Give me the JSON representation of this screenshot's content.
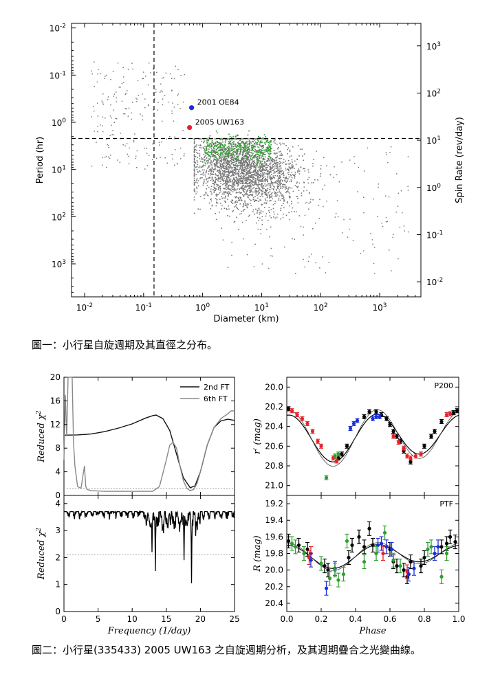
{
  "captions": {
    "fig1": "圖一：小行星自旋週期及其直徑之分布。",
    "fig2": "圖二：小行星(335433) 2005 UW163 之自旋週期分析，及其週期疊合之光變曲線。"
  },
  "chart_data": [
    {
      "type": "scatter",
      "title": "",
      "xlabel": "Diameter (km)",
      "ylabel": "Period (hr)",
      "y2label": "Spin Rate (rev/day)",
      "xscale": "log",
      "yscale": "log",
      "xlim": [
        0.006,
        5000
      ],
      "ylim": [
        0.008,
        5000
      ],
      "x_ticks": [
        {
          "v": 0.01,
          "b": "10",
          "e": "-2"
        },
        {
          "v": 0.1,
          "b": "10",
          "e": "-1"
        },
        {
          "v": 1,
          "b": "10",
          "e": "0"
        },
        {
          "v": 10,
          "b": "10",
          "e": "1"
        },
        {
          "v": 100,
          "b": "10",
          "e": "2"
        },
        {
          "v": 1000,
          "b": "10",
          "e": "3"
        }
      ],
      "y_ticks": [
        {
          "v": 0.01,
          "b": "10",
          "e": "-2"
        },
        {
          "v": 0.1,
          "b": "10",
          "e": "-1"
        },
        {
          "v": 1,
          "b": "10",
          "e": "0"
        },
        {
          "v": 10,
          "b": "10",
          "e": "1"
        },
        {
          "v": 100,
          "b": "10",
          "e": "2"
        },
        {
          "v": 1000,
          "b": "10",
          "e": "3"
        }
      ],
      "y2_ticks": [
        {
          "v": 1000,
          "b": "10",
          "e": "3"
        },
        {
          "v": 100,
          "b": "10",
          "e": "2"
        },
        {
          "v": 10,
          "b": "10",
          "e": "1"
        },
        {
          "v": 1,
          "b": "10",
          "e": "0"
        },
        {
          "v": 0.1,
          "b": "10",
          "e": "-1"
        },
        {
          "v": 0.01,
          "b": "10",
          "e": "-2"
        }
      ],
      "spin_barrier_period_hr": 2.2,
      "size_limit_km": 0.15,
      "highlighted": [
        {
          "name": "2001 OE84",
          "diameter_km": 0.65,
          "period_hr": 0.49,
          "color": "#1a2fd6"
        },
        {
          "name": "2005 UW163",
          "diameter_km": 0.6,
          "period_hr": 1.29,
          "color": "#e8212a"
        }
      ],
      "populations": [
        {
          "name": "known asteroids",
          "color": "#777777",
          "note": "thousands of points; main cloud D≈1–300 km, P≈2–100 hr"
        },
        {
          "name": "survey sample",
          "color": "#2e9e2e",
          "note": "green points D≈1–15 km, P≈3–10 hr"
        }
      ]
    },
    {
      "type": "line",
      "panel": "top-left",
      "xlabel": "",
      "ylabel": "Reduced χ²",
      "xlim": [
        0,
        25
      ],
      "ylim": [
        0,
        20
      ],
      "y_ticks": [
        0,
        4,
        8,
        12,
        16,
        20
      ],
      "legend_position": "top-right",
      "series": [
        {
          "name": "2nd FT",
          "color": "#111111",
          "x": [
            0,
            2,
            4,
            6,
            8,
            10,
            12,
            13,
            13.5,
            14.5,
            15.5,
            16.5,
            17.5,
            18.5,
            19.2,
            20,
            21,
            22,
            23,
            24,
            25
          ],
          "y": [
            10.2,
            10.25,
            10.4,
            10.8,
            11.4,
            12.1,
            13.1,
            13.5,
            13.6,
            13.0,
            11.0,
            7.0,
            3.0,
            1.3,
            1.6,
            4.0,
            8.5,
            11.5,
            12.6,
            12.9,
            12.7
          ]
        },
        {
          "name": "6th FT",
          "color": "#888888",
          "x": [
            0,
            0.2,
            0.4,
            0.6,
            0.8,
            1.0,
            1.2,
            1.4,
            1.6,
            2.0,
            2.5,
            3.0,
            3.2,
            3.4,
            4,
            6,
            8,
            10,
            12,
            13,
            14,
            15,
            15.5,
            16,
            16.5,
            17,
            17.5,
            18,
            18.5,
            19,
            19.5,
            20,
            21,
            22,
            23,
            24,
            24.5,
            25
          ],
          "y": [
            6,
            17,
            10,
            20,
            20,
            20,
            20,
            9,
            5,
            1.5,
            1.2,
            5,
            1.5,
            1.0,
            0.8,
            0.7,
            0.7,
            0.7,
            0.7,
            0.7,
            1.5,
            6.0,
            8.5,
            9.0,
            8.0,
            5.0,
            2.5,
            1.2,
            0.8,
            1.0,
            2.0,
            4.0,
            8.5,
            11.5,
            13.0,
            13.8,
            14.3,
            14.3
          ]
        }
      ],
      "reference_level": 1.2
    },
    {
      "type": "line",
      "panel": "bottom-left",
      "xlabel": "Frequency (1/day)",
      "ylabel": "Reduced χ²",
      "xlim": [
        0,
        25
      ],
      "ylim": [
        0,
        4.3
      ],
      "x_ticks": [
        0,
        5,
        10,
        15,
        20,
        25
      ],
      "y_ticks": [
        0,
        1,
        2,
        3,
        4
      ],
      "reference_level": 2.1,
      "series": [
        {
          "name": "periodogram",
          "color": "#000000",
          "note": "noisy ~3.7 baseline with deep minima near 13.5, 17.8, 18.7 1/day",
          "minima": [
            {
              "x": 12.9,
              "y": 2.2
            },
            {
              "x": 13.4,
              "y": 1.5
            },
            {
              "x": 14.6,
              "y": 2.9
            },
            {
              "x": 17.6,
              "y": 1.9
            },
            {
              "x": 18.7,
              "y": 1.05
            },
            {
              "x": 19.3,
              "y": 2.8
            }
          ]
        }
      ]
    },
    {
      "type": "scatter",
      "panel": "top-right",
      "label": "P200",
      "xlabel": "",
      "ylabel": "r′ (mag)",
      "xlim": [
        0,
        1
      ],
      "ylim": [
        21.1,
        19.9
      ],
      "y_ticks": [
        20.0,
        20.2,
        20.4,
        20.6,
        20.8,
        21.0
      ],
      "series": [
        {
          "name": "black",
          "color": "#000000",
          "x": [
            0.01,
            0.3,
            0.32,
            0.35,
            0.45,
            0.48,
            0.52,
            0.55,
            0.58,
            0.6,
            0.62,
            0.64,
            0.66,
            0.68,
            0.72,
            0.8,
            0.84,
            0.86,
            0.9,
            0.97,
            0.99
          ],
          "y": [
            20.22,
            20.72,
            20.68,
            20.6,
            20.3,
            20.25,
            20.25,
            20.28,
            20.32,
            20.38,
            20.45,
            20.5,
            20.55,
            20.65,
            20.76,
            20.6,
            20.5,
            20.45,
            20.35,
            20.26,
            20.24
          ]
        },
        {
          "name": "red",
          "color": "#e8212a",
          "x": [
            0.03,
            0.06,
            0.09,
            0.12,
            0.15,
            0.18,
            0.2,
            0.27,
            0.29,
            0.62,
            0.65,
            0.68,
            0.7,
            0.72,
            0.75,
            0.78,
            0.93,
            0.95
          ],
          "y": [
            20.24,
            20.28,
            20.32,
            20.37,
            20.45,
            20.55,
            20.6,
            20.72,
            20.75,
            20.5,
            20.56,
            20.62,
            20.7,
            20.72,
            20.7,
            20.68,
            20.28,
            20.27
          ]
        },
        {
          "name": "blue",
          "color": "#1a2fd6",
          "x": [
            0.37,
            0.39,
            0.41,
            0.5,
            0.52,
            0.54
          ],
          "y": [
            20.42,
            20.37,
            20.34,
            20.32,
            20.3,
            20.3
          ]
        },
        {
          "name": "green",
          "color": "#2e9e2e",
          "x": [
            0.23,
            0.28,
            0.3
          ],
          "y": [
            20.92,
            20.7,
            20.68
          ]
        }
      ]
    },
    {
      "type": "scatter",
      "panel": "bottom-right",
      "label": "PTF",
      "xlabel": "Phase",
      "ylabel": "R (mag)",
      "xlim": [
        0,
        1
      ],
      "ylim": [
        20.5,
        19.1
      ],
      "x_ticks": [
        0.0,
        0.2,
        0.4,
        0.6,
        0.8,
        1.0
      ],
      "y_ticks": [
        19.2,
        19.4,
        19.6,
        19.8,
        20.0,
        20.2,
        20.4
      ],
      "series": [
        {
          "name": "black",
          "color": "#000000",
          "x": [
            0.01,
            0.07,
            0.12,
            0.22,
            0.24,
            0.36,
            0.38,
            0.42,
            0.45,
            0.48,
            0.5,
            0.6,
            0.62,
            0.64,
            0.68,
            0.7,
            0.72,
            0.78,
            0.8,
            0.9,
            0.93,
            0.95,
            0.98
          ],
          "y": [
            19.65,
            19.7,
            19.75,
            19.95,
            20.0,
            19.85,
            19.7,
            19.6,
            19.72,
            19.5,
            19.7,
            19.75,
            19.9,
            19.95,
            20.0,
            20.08,
            19.9,
            19.95,
            19.85,
            19.72,
            19.68,
            19.6,
            19.66
          ]
        },
        {
          "name": "red",
          "color": "#e8212a",
          "x": [
            0.13,
            0.14,
            0.56,
            0.7
          ],
          "y": [
            19.85,
            19.8,
            19.8,
            20.02
          ]
        },
        {
          "name": "blue",
          "color": "#1a2fd6",
          "x": [
            0.14,
            0.23,
            0.28,
            0.53,
            0.55,
            0.58,
            0.61,
            0.71,
            0.74,
            0.86,
            0.88
          ],
          "y": [
            19.88,
            20.22,
            19.98,
            19.7,
            19.68,
            19.72,
            19.75,
            20.05,
            19.98,
            19.8,
            19.72
          ]
        },
        {
          "name": "green",
          "color": "#2e9e2e",
          "x": [
            0.03,
            0.05,
            0.1,
            0.2,
            0.25,
            0.28,
            0.3,
            0.33,
            0.35,
            0.45,
            0.52,
            0.57,
            0.62,
            0.66,
            0.82,
            0.84,
            0.9,
            0.93
          ],
          "y": [
            19.68,
            19.72,
            19.8,
            19.92,
            20.1,
            20.0,
            20.12,
            20.05,
            19.65,
            19.9,
            19.8,
            19.55,
            19.88,
            19.95,
            19.75,
            19.72,
            20.08,
            19.8
          ]
        }
      ]
    }
  ]
}
